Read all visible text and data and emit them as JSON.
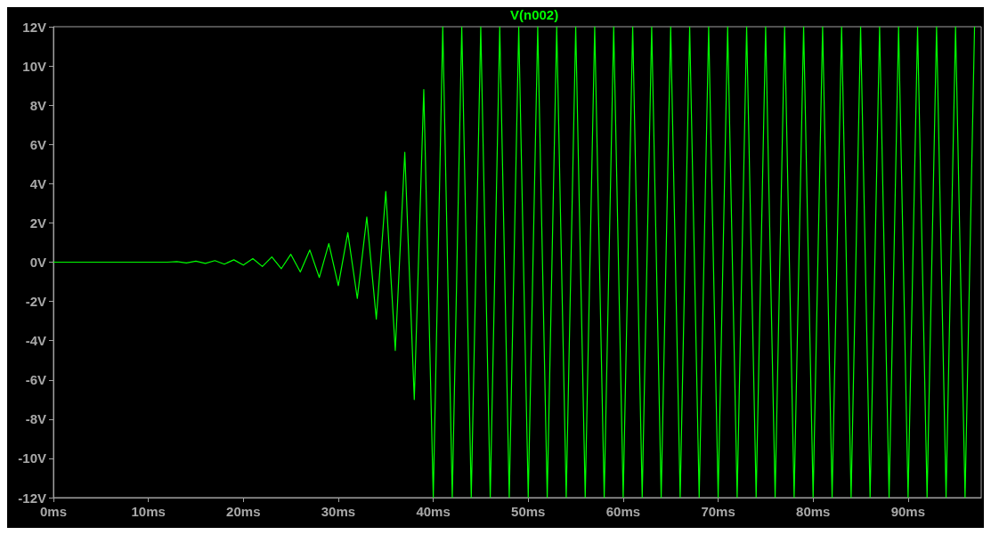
{
  "chart_data": {
    "type": "line",
    "title": "V(n002)",
    "x": [
      0,
      12,
      13,
      14,
      15,
      16,
      17,
      18,
      19,
      20,
      21,
      22,
      23,
      24,
      25,
      26,
      27,
      28,
      29,
      30,
      31,
      32,
      33,
      34,
      35,
      36,
      37,
      38,
      39,
      40,
      41,
      42,
      43,
      44,
      45,
      46,
      47,
      48,
      49,
      50,
      51,
      52,
      53,
      54,
      55,
      56,
      57,
      58,
      59,
      60,
      61,
      62,
      63,
      64,
      65,
      66,
      67,
      68,
      69,
      70,
      71,
      72,
      73,
      74,
      75,
      76,
      77,
      78,
      79,
      80,
      81,
      82,
      83,
      84,
      85,
      86,
      87,
      88,
      89,
      90,
      91,
      92,
      93,
      94,
      95,
      96,
      97
    ],
    "series": [
      {
        "color": "#00ff00",
        "values": [
          0,
          0,
          0.03,
          -0.04,
          0.05,
          -0.06,
          0.08,
          -0.1,
          0.12,
          -0.15,
          0.18,
          -0.22,
          0.27,
          -0.33,
          0.4,
          -0.5,
          0.62,
          -0.78,
          0.95,
          -1.2,
          1.5,
          -1.85,
          2.3,
          -2.9,
          3.6,
          -4.5,
          5.6,
          -7,
          8.8,
          -12,
          12,
          -12,
          12,
          -12,
          12,
          -12,
          12,
          -12,
          12,
          -12,
          12,
          -12,
          12,
          -12,
          12,
          -12,
          12,
          -12,
          12,
          -12,
          12,
          -12,
          12,
          -12,
          12,
          -12,
          12,
          -12,
          12,
          -12,
          12,
          -12,
          12,
          -12,
          12,
          -12,
          12,
          -12,
          12,
          -12,
          12,
          -12,
          12,
          -12,
          12,
          -12,
          12,
          -12,
          12,
          -12,
          12,
          -12,
          12,
          -12,
          12,
          -12,
          12
        ]
      }
    ],
    "xlim": [
      0,
      97.7
    ],
    "ylim": [
      -12,
      12
    ],
    "xticks": [
      {
        "value": 0,
        "label": "0ms"
      },
      {
        "value": 10,
        "label": "10ms"
      },
      {
        "value": 20,
        "label": "20ms"
      },
      {
        "value": 30,
        "label": "30ms"
      },
      {
        "value": 40,
        "label": "40ms"
      },
      {
        "value": 50,
        "label": "50ms"
      },
      {
        "value": 60,
        "label": "60ms"
      },
      {
        "value": 70,
        "label": "70ms"
      },
      {
        "value": 80,
        "label": "80ms"
      },
      {
        "value": 90,
        "label": "90ms"
      }
    ],
    "yticks": [
      {
        "value": -12,
        "label": "-12V"
      },
      {
        "value": -10,
        "label": "-10V"
      },
      {
        "value": -8,
        "label": "-8V"
      },
      {
        "value": -6,
        "label": "-6V"
      },
      {
        "value": -4,
        "label": "-4V"
      },
      {
        "value": -2,
        "label": "-2V"
      },
      {
        "value": 0,
        "label": "0V"
      },
      {
        "value": 2,
        "label": "2V"
      },
      {
        "value": 4,
        "label": "4V"
      },
      {
        "value": 6,
        "label": "6V"
      },
      {
        "value": 8,
        "label": "8V"
      },
      {
        "value": 10,
        "label": "10V"
      },
      {
        "value": 12,
        "label": "12V"
      }
    ],
    "grid": false,
    "marker": "none",
    "line_style": "solid"
  }
}
